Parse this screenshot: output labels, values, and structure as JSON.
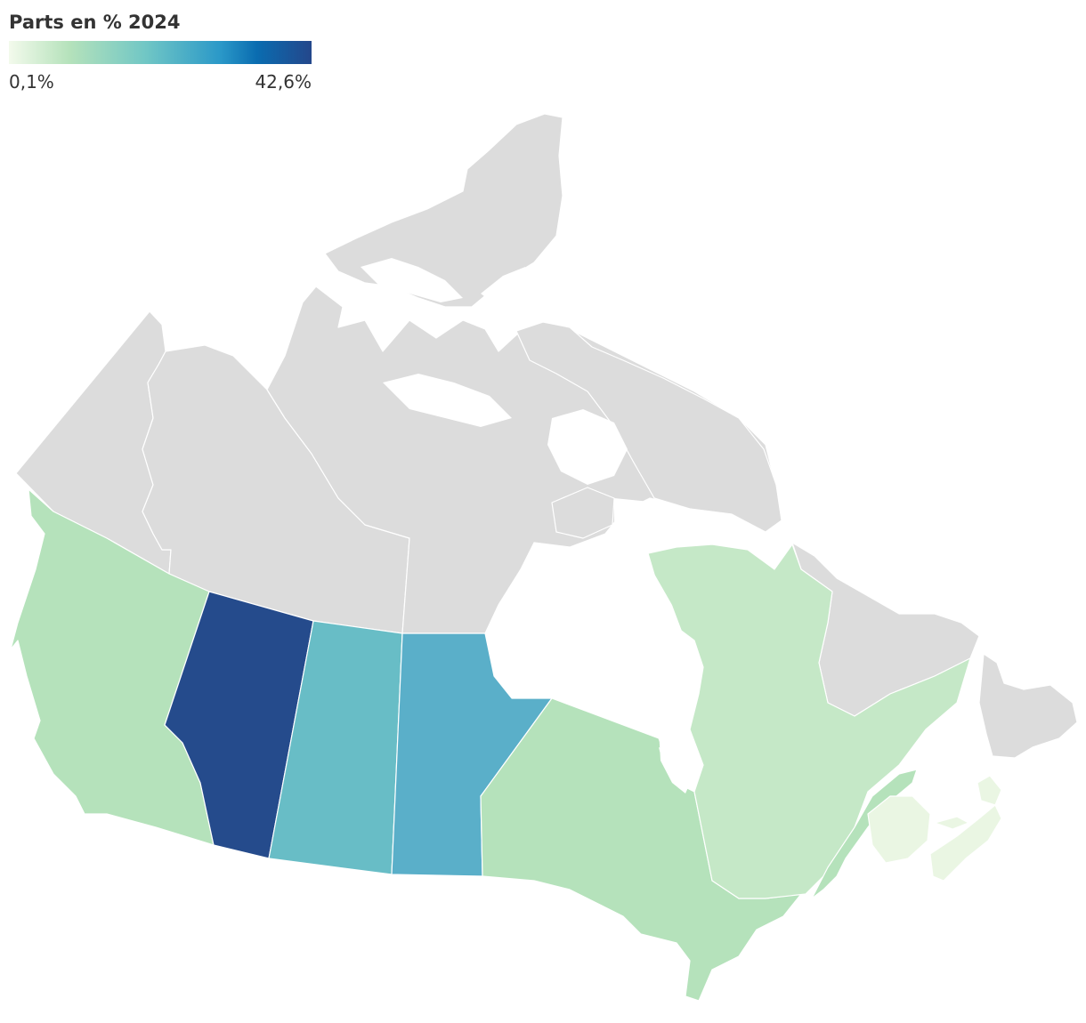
{
  "legend": {
    "title": "Parts en % 2024",
    "min_label": "0,1%",
    "max_label": "42,6%",
    "gradient": [
      "#f3faec",
      "#b5e2bb",
      "#71c7c5",
      "#2a98c8",
      "#0a6cb0",
      "#24478b"
    ]
  },
  "colors": {
    "no_data": "#dcdcdc",
    "alberta": "#254b8c",
    "saskatchewan": "#68bdc6",
    "manitoba": "#5aafc9",
    "british_columbia": "#b5e2bb",
    "ontario": "#b5e2bb",
    "quebec": "#c5e8c7",
    "maritimes": "#eaf6e3"
  }
}
